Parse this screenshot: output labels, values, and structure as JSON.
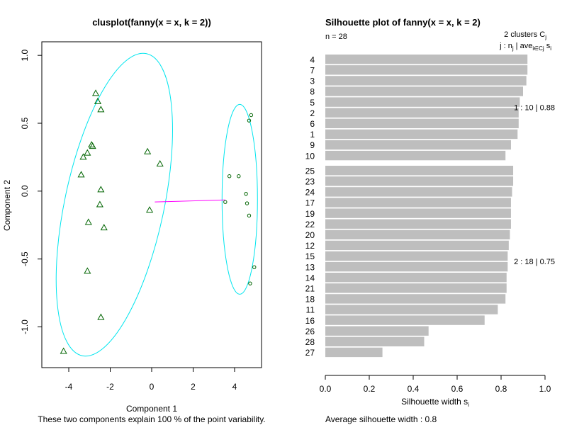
{
  "chart_data": [
    {
      "type": "scatter",
      "title": "clusplot(fanny(x = x, k = 2))",
      "xlabel": "Component 1",
      "ylabel": "Component 2",
      "subtitle": "These two components explain 100 % of the point variability.",
      "xlim": [
        -5.3,
        5.3
      ],
      "ylim": [
        -1.3,
        1.1
      ],
      "xticks": [
        "-4",
        "-2",
        "0",
        "2",
        "4"
      ],
      "yticks": [
        "-1.0",
        "-0.5",
        "0.0",
        "0.5",
        "1.0"
      ],
      "colors": {
        "ellipse": "#00e5ee",
        "link": "#ff00ff",
        "points": "#006400"
      },
      "series": [
        {
          "marker": "triangle",
          "points": [
            {
              "x": -2.7,
              "y": 0.72
            },
            {
              "x": -2.6,
              "y": 0.66
            },
            {
              "x": -2.45,
              "y": 0.6
            },
            {
              "x": -2.9,
              "y": 0.34
            },
            {
              "x": -2.85,
              "y": 0.33
            },
            {
              "x": -3.1,
              "y": 0.28
            },
            {
              "x": -3.3,
              "y": 0.25
            },
            {
              "x": -0.2,
              "y": 0.29
            },
            {
              "x": 0.4,
              "y": 0.2
            },
            {
              "x": -3.4,
              "y": 0.12
            },
            {
              "x": -2.45,
              "y": 0.01
            },
            {
              "x": -2.5,
              "y": -0.1
            },
            {
              "x": -0.1,
              "y": -0.14
            },
            {
              "x": -3.05,
              "y": -0.23
            },
            {
              "x": -2.3,
              "y": -0.27
            },
            {
              "x": -3.1,
              "y": -0.59
            },
            {
              "x": -2.45,
              "y": -0.93
            },
            {
              "x": -4.25,
              "y": -1.18
            }
          ]
        },
        {
          "marker": "circle",
          "points": [
            {
              "x": 4.8,
              "y": 0.56
            },
            {
              "x": 4.7,
              "y": 0.52
            },
            {
              "x": 3.75,
              "y": 0.11
            },
            {
              "x": 4.2,
              "y": 0.11
            },
            {
              "x": 4.55,
              "y": -0.02
            },
            {
              "x": 3.55,
              "y": -0.08
            },
            {
              "x": 4.6,
              "y": -0.09
            },
            {
              "x": 4.7,
              "y": -0.18
            },
            {
              "x": 4.95,
              "y": -0.56
            },
            {
              "x": 4.75,
              "y": -0.68
            }
          ]
        }
      ],
      "ellipses": [
        {
          "center": [
            -1.8,
            -0.1
          ],
          "semi_major": 1.56,
          "semi_minor": 3.9,
          "angle_deg": 12
        },
        {
          "center": [
            4.25,
            -0.06
          ],
          "semi_major": 0.68,
          "semi_minor": 0.82,
          "angle_deg": 0
        }
      ],
      "link": [
        [
          0.15,
          -0.08
        ],
        [
          3.55,
          -0.065
        ]
      ]
    },
    {
      "type": "bar",
      "orientation": "horizontal",
      "title": "Silhouette plot of fanny(x = x, k = 2)",
      "n_label": "n = 28",
      "legend_line1": "2  clusters  C",
      "legend_line1_sub": "j",
      "legend_line2": "j :  n",
      "legend_line2_sub1": "j",
      "legend_line2_mid": " | ave",
      "legend_line2_sub2": "i∈Cj",
      "legend_line2_end": "  s",
      "legend_line2_sub3": "i",
      "xlabel": "Silhouette width s",
      "xlabel_sub": "i",
      "xlim": [
        0,
        1
      ],
      "xticks": [
        "0.0",
        "0.2",
        "0.4",
        "0.6",
        "0.8",
        "1.0"
      ],
      "bar_color": "#bebebe",
      "footer": "Average silhouette width :  0.8",
      "clusters": [
        {
          "label": "1 :   10  |  0.88",
          "items": [
            {
              "name": "4",
              "value": 0.92
            },
            {
              "name": "7",
              "value": 0.92
            },
            {
              "name": "3",
              "value": 0.915
            },
            {
              "name": "8",
              "value": 0.9
            },
            {
              "name": "5",
              "value": 0.885
            },
            {
              "name": "2",
              "value": 0.88
            },
            {
              "name": "6",
              "value": 0.88
            },
            {
              "name": "1",
              "value": 0.875
            },
            {
              "name": "9",
              "value": 0.845
            },
            {
              "name": "10",
              "value": 0.82
            }
          ]
        },
        {
          "label": "2 :   18  |  0.75",
          "items": [
            {
              "name": "25",
              "value": 0.855
            },
            {
              "name": "23",
              "value": 0.855
            },
            {
              "name": "24",
              "value": 0.85
            },
            {
              "name": "17",
              "value": 0.845
            },
            {
              "name": "19",
              "value": 0.845
            },
            {
              "name": "22",
              "value": 0.845
            },
            {
              "name": "20",
              "value": 0.84
            },
            {
              "name": "12",
              "value": 0.835
            },
            {
              "name": "15",
              "value": 0.83
            },
            {
              "name": "13",
              "value": 0.83
            },
            {
              "name": "14",
              "value": 0.825
            },
            {
              "name": "21",
              "value": 0.825
            },
            {
              "name": "18",
              "value": 0.82
            },
            {
              "name": "11",
              "value": 0.785
            },
            {
              "name": "16",
              "value": 0.725
            },
            {
              "name": "26",
              "value": 0.47
            },
            {
              "name": "28",
              "value": 0.45
            },
            {
              "name": "27",
              "value": 0.26
            }
          ]
        }
      ]
    }
  ]
}
